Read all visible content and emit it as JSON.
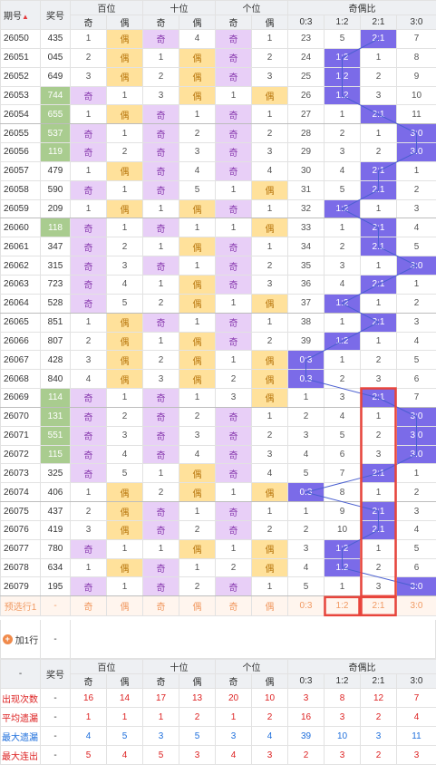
{
  "header": {
    "period": "期号",
    "prize": "奖号",
    "groups": [
      "百位",
      "十位",
      "个位",
      "奇偶比"
    ],
    "sub": [
      "奇",
      "偶",
      "奇",
      "偶",
      "奇",
      "偶",
      "0:3",
      "1:2",
      "2:1",
      "3:0"
    ]
  },
  "rows": [
    [
      "26050",
      "435",
      "1",
      "偶",
      "奇",
      "4",
      "奇",
      "1",
      "23",
      "5",
      "2:1",
      "7"
    ],
    [
      "26051",
      "045",
      "2",
      "偶",
      "1",
      "偶",
      "奇",
      "2",
      "24",
      "1:2",
      "1",
      "8"
    ],
    [
      "26052",
      "649",
      "3",
      "偶",
      "2",
      "偶",
      "奇",
      "3",
      "25",
      "1:2",
      "2",
      "9"
    ],
    [
      "26053",
      "744",
      "奇",
      "1",
      "3",
      "偶",
      "1",
      "偶",
      "26",
      "1:2",
      "3",
      "10"
    ],
    [
      "26054",
      "655",
      "1",
      "偶",
      "奇",
      "1",
      "奇",
      "1",
      "27",
      "1",
      "2:1",
      "11"
    ],
    [
      "26055",
      "537",
      "奇",
      "1",
      "奇",
      "2",
      "奇",
      "2",
      "28",
      "2",
      "1",
      "3:0"
    ],
    [
      "26056",
      "119",
      "奇",
      "2",
      "奇",
      "3",
      "奇",
      "3",
      "29",
      "3",
      "2",
      "3:0"
    ],
    [
      "26057",
      "479",
      "1",
      "偶",
      "奇",
      "4",
      "奇",
      "4",
      "30",
      "4",
      "2:1",
      "1"
    ],
    [
      "26058",
      "590",
      "奇",
      "1",
      "奇",
      "5",
      "1",
      "偶",
      "31",
      "5",
      "2:1",
      "2"
    ],
    [
      "26059",
      "209",
      "1",
      "偶",
      "1",
      "偶",
      "奇",
      "1",
      "32",
      "1:2",
      "1",
      "3"
    ],
    [
      "26060",
      "118",
      "奇",
      "1",
      "奇",
      "1",
      "1",
      "偶",
      "33",
      "1",
      "2:1",
      "4"
    ],
    [
      "26061",
      "347",
      "奇",
      "2",
      "1",
      "偶",
      "奇",
      "1",
      "34",
      "2",
      "2:1",
      "5"
    ],
    [
      "26062",
      "315",
      "奇",
      "3",
      "奇",
      "1",
      "奇",
      "2",
      "35",
      "3",
      "1",
      "3:0"
    ],
    [
      "26063",
      "723",
      "奇",
      "4",
      "1",
      "偶",
      "奇",
      "3",
      "36",
      "4",
      "2:1",
      "1"
    ],
    [
      "26064",
      "528",
      "奇",
      "5",
      "2",
      "偶",
      "1",
      "偶",
      "37",
      "1:2",
      "1",
      "2"
    ],
    [
      "26065",
      "851",
      "1",
      "偶",
      "奇",
      "1",
      "奇",
      "1",
      "38",
      "1",
      "2:1",
      "3"
    ],
    [
      "26066",
      "807",
      "2",
      "偶",
      "1",
      "偶",
      "奇",
      "2",
      "39",
      "1:2",
      "1",
      "4"
    ],
    [
      "26067",
      "428",
      "3",
      "偶",
      "2",
      "偶",
      "1",
      "偶",
      "0:3",
      "1",
      "2",
      "5"
    ],
    [
      "26068",
      "840",
      "4",
      "偶",
      "3",
      "偶",
      "2",
      "偶",
      "0:3",
      "2",
      "3",
      "6"
    ],
    [
      "26069",
      "114",
      "奇",
      "1",
      "奇",
      "1",
      "3",
      "偶",
      "1",
      "3",
      "2:1",
      "7"
    ],
    [
      "26070",
      "131",
      "奇",
      "2",
      "奇",
      "2",
      "奇",
      "1",
      "2",
      "4",
      "1",
      "3:0"
    ],
    [
      "26071",
      "551",
      "奇",
      "3",
      "奇",
      "3",
      "奇",
      "2",
      "3",
      "5",
      "2",
      "3:0"
    ],
    [
      "26072",
      "115",
      "奇",
      "4",
      "奇",
      "4",
      "奇",
      "3",
      "4",
      "6",
      "3",
      "3:0"
    ],
    [
      "26073",
      "325",
      "奇",
      "5",
      "1",
      "偶",
      "奇",
      "4",
      "5",
      "7",
      "2:1",
      "1"
    ],
    [
      "26074",
      "406",
      "1",
      "偶",
      "2",
      "偶",
      "1",
      "偶",
      "0:3",
      "8",
      "1",
      "2"
    ],
    [
      "26075",
      "437",
      "2",
      "偶",
      "奇",
      "1",
      "奇",
      "1",
      "1",
      "9",
      "2:1",
      "3"
    ],
    [
      "26076",
      "419",
      "3",
      "偶",
      "奇",
      "2",
      "奇",
      "2",
      "2",
      "10",
      "2:1",
      "4"
    ],
    [
      "26077",
      "780",
      "奇",
      "1",
      "1",
      "偶",
      "1",
      "偶",
      "3",
      "1:2",
      "1",
      "5"
    ],
    [
      "26078",
      "634",
      "1",
      "偶",
      "奇",
      "1",
      "2",
      "偶",
      "4",
      "1:2",
      "2",
      "6"
    ],
    [
      "26079",
      "195",
      "奇",
      "1",
      "奇",
      "2",
      "奇",
      "1",
      "5",
      "1",
      "3",
      "3:0"
    ]
  ],
  "predict": {
    "label": "预选行1",
    "cells": [
      "-",
      "奇",
      "偶",
      "奇",
      "偶",
      "奇",
      "偶",
      "0:3",
      "1:2",
      "2:1",
      "3:0"
    ]
  },
  "add_row": {
    "label": "加1行",
    "dash": "-"
  },
  "stats": [
    {
      "label": "出现次数",
      "dash": "-",
      "vals": [
        "16",
        "14",
        "17",
        "13",
        "20",
        "10",
        "3",
        "8",
        "12",
        "7"
      ]
    },
    {
      "label": "平均遗漏",
      "dash": "-",
      "vals": [
        "1",
        "1",
        "1",
        "2",
        "1",
        "2",
        "16",
        "3",
        "2",
        "4"
      ]
    },
    {
      "label": "最大遗漏",
      "dash": "-",
      "vals": [
        "4",
        "5",
        "3",
        "5",
        "3",
        "4",
        "39",
        "10",
        "3",
        "11"
      ]
    },
    {
      "label": "最大连出",
      "dash": "-",
      "vals": [
        "5",
        "4",
        "5",
        "3",
        "4",
        "3",
        "2",
        "3",
        "2",
        "3"
      ]
    }
  ],
  "colors": {
    "odd": "#e8cff7",
    "even": "#ffe19b",
    "ratio": "#7b6be8",
    "highlight": "#e8453c",
    "win": "#a9cc8f"
  }
}
